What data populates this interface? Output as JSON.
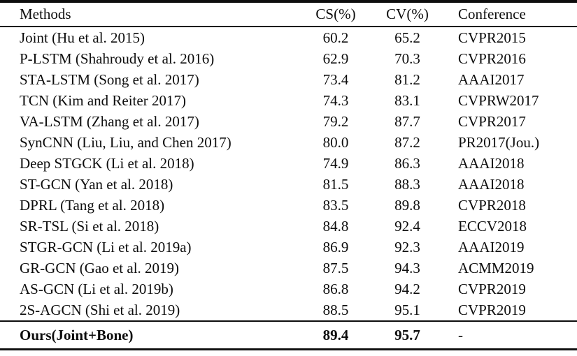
{
  "table": {
    "headers": {
      "method": "Methods",
      "cs": "CS(%)",
      "cv": "CV(%)",
      "conference": "Conference"
    },
    "rows": [
      {
        "method": "Joint (Hu et al. 2015)",
        "cs": "60.2",
        "cv": "65.2",
        "conference": "CVPR2015"
      },
      {
        "method": "P-LSTM (Shahroudy et al. 2016)",
        "cs": "62.9",
        "cv": "70.3",
        "conference": "CVPR2016"
      },
      {
        "method": "STA-LSTM (Song et al. 2017)",
        "cs": "73.4",
        "cv": "81.2",
        "conference": "AAAI2017"
      },
      {
        "method": "TCN (Kim and Reiter 2017)",
        "cs": "74.3",
        "cv": "83.1",
        "conference": "CVPRW2017"
      },
      {
        "method": "VA-LSTM (Zhang et al. 2017)",
        "cs": "79.2",
        "cv": "87.7",
        "conference": "CVPR2017"
      },
      {
        "method": "SynCNN (Liu, Liu, and Chen 2017)",
        "cs": "80.0",
        "cv": "87.2",
        "conference": "PR2017(Jou.)"
      },
      {
        "method": "Deep STGCK (Li et al. 2018)",
        "cs": "74.9",
        "cv": "86.3",
        "conference": "AAAI2018"
      },
      {
        "method": "ST-GCN (Yan et al. 2018)",
        "cs": "81.5",
        "cv": "88.3",
        "conference": "AAAI2018"
      },
      {
        "method": "DPRL (Tang et al. 2018)",
        "cs": "83.5",
        "cv": "89.8",
        "conference": "CVPR2018"
      },
      {
        "method": "SR-TSL (Si et al. 2018)",
        "cs": "84.8",
        "cv": "92.4",
        "conference": "ECCV2018"
      },
      {
        "method": "STGR-GCN (Li et al. 2019a)",
        "cs": "86.9",
        "cv": "92.3",
        "conference": "AAAI2019"
      },
      {
        "method": "GR-GCN (Gao et al. 2019)",
        "cs": "87.5",
        "cv": "94.3",
        "conference": "ACMM2019"
      },
      {
        "method": "AS-GCN (Li et al. 2019b)",
        "cs": "86.8",
        "cv": "94.2",
        "conference": "CVPR2019"
      },
      {
        "method": "2S-AGCN (Shi et al. 2019)",
        "cs": "88.5",
        "cv": "95.1",
        "conference": "CVPR2019"
      }
    ],
    "ours_row": {
      "method": "Ours(Joint+Bone)",
      "cs": "89.4",
      "cv": "95.7",
      "conference": "-"
    }
  }
}
